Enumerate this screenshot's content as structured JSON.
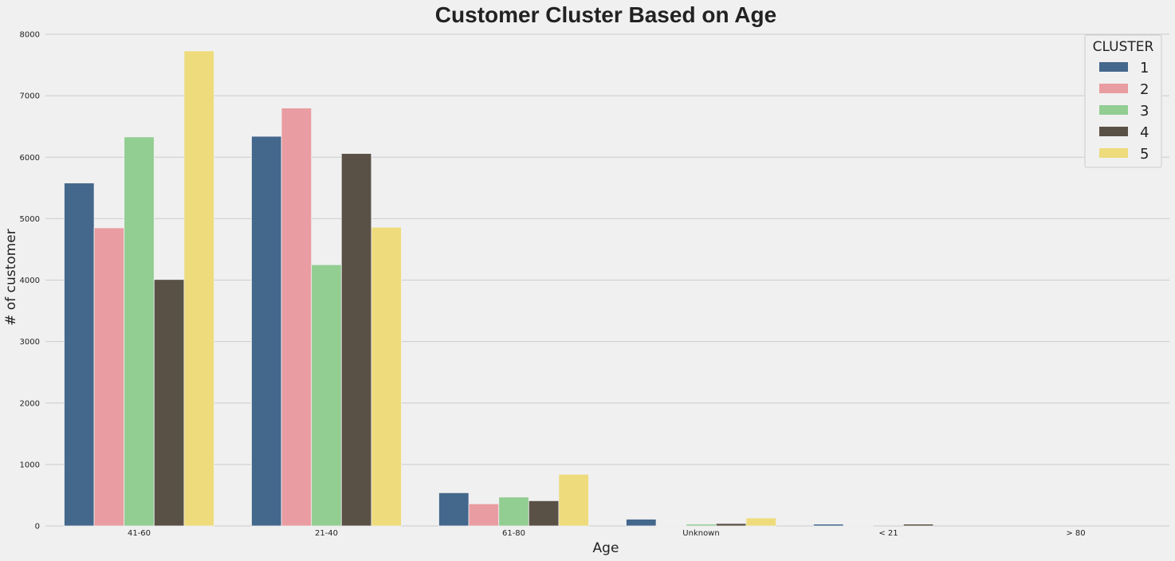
{
  "chart_data": {
    "type": "bar",
    "title": "Customer Cluster Based on Age",
    "xlabel": "Age",
    "ylabel": "# of customer",
    "ylim": [
      0,
      8000
    ],
    "yticks": [
      0,
      1000,
      2000,
      3000,
      4000,
      5000,
      6000,
      7000,
      8000
    ],
    "grid": true,
    "legend_title": "CLUSTER",
    "legend_position": "top-right",
    "categories": [
      "41-60",
      "21-40",
      "61-80",
      "Unknown",
      "< 21",
      "> 80"
    ],
    "series": [
      {
        "name": "1",
        "color": "#44678c",
        "values": [
          5580,
          6340,
          540,
          110,
          30,
          0
        ]
      },
      {
        "name": "2",
        "color": "#e99ca1",
        "values": [
          4850,
          6800,
          360,
          10,
          10,
          0
        ]
      },
      {
        "name": "3",
        "color": "#92cd92",
        "values": [
          6330,
          4250,
          470,
          30,
          0,
          0
        ]
      },
      {
        "name": "4",
        "color": "#5a5146",
        "values": [
          4010,
          6060,
          410,
          40,
          30,
          0
        ]
      },
      {
        "name": "5",
        "color": "#eedb7c",
        "values": [
          7730,
          4860,
          840,
          130,
          0,
          0
        ]
      }
    ]
  }
}
